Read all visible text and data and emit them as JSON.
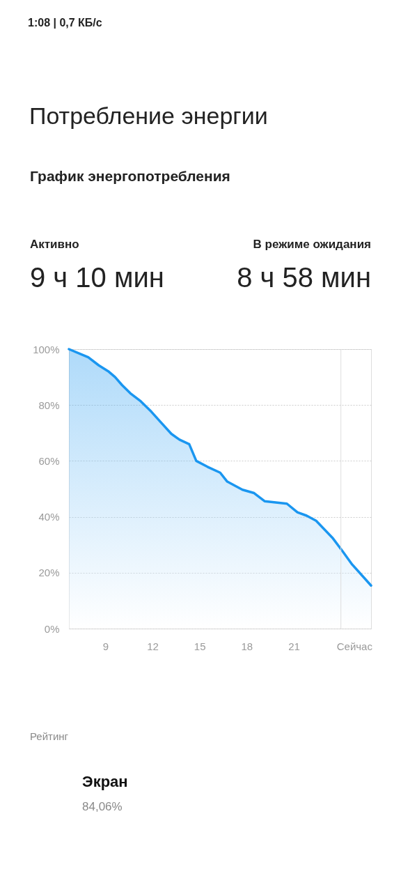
{
  "chart_data": {
    "type": "area",
    "title": "Потребление энергии",
    "subtitle": "График энергопотребления",
    "x": [
      6.68,
      7.91,
      8.58,
      9.18,
      9.62,
      10.07,
      10.59,
      11.26,
      11.93,
      12.52,
      13.2,
      13.72,
      14.34,
      14.79,
      15.5,
      16.31,
      16.76,
      17.73,
      18.47,
      19.14,
      20.56,
      21.23,
      21.82,
      22.42,
      23.46,
      24.13,
      24.72,
      25.92
    ],
    "series": [
      {
        "color": "#1a96f0",
        "values": [
          100,
          97.1,
          94.2,
          92.1,
          90.0,
          87.1,
          84.2,
          81.3,
          77.6,
          73.9,
          69.7,
          67.6,
          66.0,
          60.0,
          57.9,
          55.8,
          52.6,
          49.7,
          48.5,
          45.6,
          44.7,
          41.6,
          40.4,
          38.6,
          32.5,
          27.5,
          22.9,
          15.4
        ]
      }
    ],
    "xlim": [
      6.68,
      25.92
    ],
    "xticks": [
      9,
      12,
      15,
      18,
      21,
      {
        "value": 24.85,
        "label": "Сейчас"
      }
    ],
    "ylim": [
      0,
      100
    ],
    "yticks": [
      {
        "value": 0,
        "label": "0%"
      },
      {
        "value": 20,
        "label": "20%"
      },
      {
        "value": 40,
        "label": "40%"
      },
      {
        "value": 60,
        "label": "60%"
      },
      {
        "value": 80,
        "label": "80%"
      },
      {
        "value": 100,
        "label": "100%"
      }
    ],
    "grid": "y",
    "ref_lines": [
      {
        "axis": "x",
        "value": 24,
        "color": "#dddddd"
      }
    ],
    "annotations": [
      "1:08 | 0,7 КБ/с",
      "Активно",
      "9 ч 10 мин",
      "В режиме ожидания",
      "8 ч 58 мин",
      "Рейтинг",
      "Экран",
      "84,06%"
    ]
  }
}
